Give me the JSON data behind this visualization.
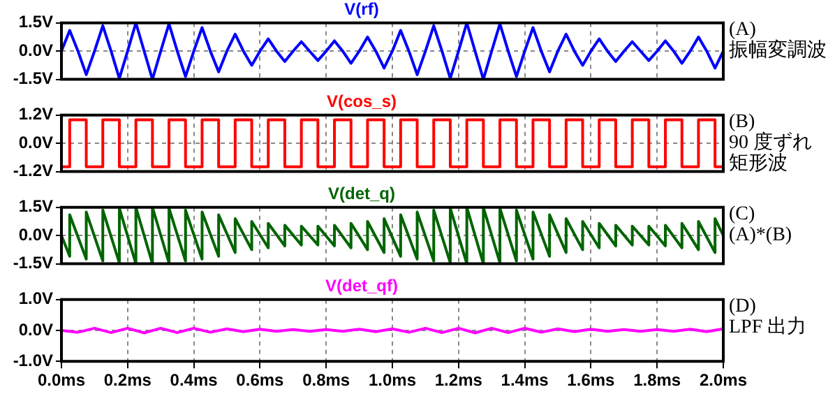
{
  "chart_data": [
    {
      "type": "line",
      "title": "V(rf)",
      "annotations": [
        "(A)",
        "振幅変調波"
      ],
      "tick_labels": "y",
      "grid": true,
      "xlim": [
        0,
        2
      ],
      "xticks": [
        0,
        0.2,
        0.4,
        0.6,
        0.8,
        1,
        1.2,
        1.4,
        1.6,
        1.8,
        2
      ],
      "ylim": [
        -1.5,
        1.5
      ],
      "yticks": [
        {
          "value": -1.5,
          "label": "-1.5V"
        },
        {
          "value": 0,
          "label": "0.0V"
        },
        {
          "value": 1.5,
          "label": "1.5V"
        }
      ],
      "x": [
        0,
        0.025,
        0.05,
        0.075,
        0.1,
        0.125,
        0.15,
        0.175,
        0.2,
        0.225,
        0.25,
        0.275,
        0.3,
        0.325,
        0.35,
        0.375,
        0.4,
        0.425,
        0.45,
        0.475,
        0.5,
        0.525,
        0.55,
        0.575,
        0.6,
        0.625,
        0.65,
        0.675,
        0.7,
        0.725,
        0.75,
        0.775,
        0.8,
        0.825,
        0.85,
        0.875,
        0.9,
        0.925,
        0.95,
        0.975,
        1,
        1.025,
        1.05,
        1.075,
        1.1,
        1.125,
        1.15,
        1.175,
        1.2,
        1.225,
        1.25,
        1.275,
        1.3,
        1.325,
        1.35,
        1.375,
        1.4,
        1.425,
        1.45,
        1.475,
        1.5,
        1.525,
        1.55,
        1.575,
        1.6,
        1.625,
        1.65,
        1.675,
        1.7,
        1.725,
        1.75,
        1.775,
        1.8,
        1.825,
        1.85,
        1.875,
        1.9,
        1.925,
        1.95,
        1.975,
        2
      ],
      "series": [
        {
          "color": "#0000ff",
          "values": [
            0,
            1.1,
            0,
            -1.25,
            0,
            1.35,
            0,
            -1.45,
            0,
            1.5,
            0,
            -1.5,
            0,
            1.45,
            0,
            -1.35,
            0,
            1.25,
            0,
            -1.1,
            0,
            0.9,
            0,
            -0.75,
            0,
            0.65,
            0,
            -0.55,
            0,
            0.5,
            0,
            -0.5,
            0,
            0.55,
            0,
            -0.65,
            0,
            0.75,
            0,
            -0.9,
            0,
            1.1,
            0,
            -1.25,
            0,
            1.35,
            0,
            -1.45,
            0,
            1.5,
            0,
            -1.5,
            0,
            1.45,
            0,
            -1.35,
            0,
            1.25,
            0,
            -1.1,
            0,
            0.9,
            0,
            -0.75,
            0,
            0.65,
            0,
            -0.55,
            0,
            0.5,
            0,
            -0.5,
            0,
            0.55,
            0,
            -0.65,
            0,
            0.75,
            0,
            -0.9,
            0
          ]
        }
      ]
    },
    {
      "type": "line",
      "title": "V(cos_s)",
      "annotations": [
        "(B)",
        "90 度ずれ",
        "矩形波"
      ],
      "tick_labels": "y",
      "grid": true,
      "xlim": [
        0,
        2
      ],
      "xticks": [
        0,
        0.2,
        0.4,
        0.6,
        0.8,
        1,
        1.2,
        1.4,
        1.6,
        1.8,
        2
      ],
      "ylim": [
        -1.2,
        1.2
      ],
      "yticks": [
        {
          "value": -1.2,
          "label": "-1.2V"
        },
        {
          "value": 0,
          "label": "0.0V"
        },
        {
          "value": 1.2,
          "label": "1.2V"
        }
      ],
      "x": [
        0,
        0.025,
        0.025,
        0.075,
        0.075,
        0.125,
        0.125,
        0.175,
        0.175,
        0.225,
        0.225,
        0.275,
        0.275,
        0.325,
        0.325,
        0.375,
        0.375,
        0.425,
        0.425,
        0.475,
        0.475,
        0.525,
        0.525,
        0.575,
        0.575,
        0.625,
        0.625,
        0.675,
        0.675,
        0.725,
        0.725,
        0.775,
        0.775,
        0.825,
        0.825,
        0.875,
        0.875,
        0.925,
        0.925,
        0.975,
        0.975,
        1.025,
        1.025,
        1.075,
        1.075,
        1.125,
        1.125,
        1.175,
        1.175,
        1.225,
        1.225,
        1.275,
        1.275,
        1.325,
        1.325,
        1.375,
        1.375,
        1.425,
        1.425,
        1.475,
        1.475,
        1.525,
        1.525,
        1.575,
        1.575,
        1.625,
        1.625,
        1.675,
        1.675,
        1.725,
        1.725,
        1.775,
        1.775,
        1.825,
        1.825,
        1.875,
        1.875,
        1.925,
        1.925,
        1.975,
        1.975,
        2
      ],
      "series": [
        {
          "color": "#ff0000",
          "values": [
            -1,
            -1,
            1,
            1,
            -1,
            -1,
            1,
            1,
            -1,
            -1,
            1,
            1,
            -1,
            -1,
            1,
            1,
            -1,
            -1,
            1,
            1,
            -1,
            -1,
            1,
            1,
            -1,
            -1,
            1,
            1,
            -1,
            -1,
            1,
            1,
            -1,
            -1,
            1,
            1,
            -1,
            -1,
            1,
            1,
            -1,
            -1,
            1,
            1,
            -1,
            -1,
            1,
            1,
            -1,
            -1,
            1,
            1,
            -1,
            -1,
            1,
            1,
            -1,
            -1,
            1,
            1,
            -1,
            -1,
            1,
            1,
            -1,
            -1,
            1,
            1,
            -1,
            -1,
            1,
            1,
            -1,
            -1,
            1,
            1,
            -1,
            -1,
            1,
            1,
            -1,
            -1
          ]
        }
      ]
    },
    {
      "type": "line",
      "title": "V(det_q)",
      "annotations": [
        "(C)",
        "(A)*(B)"
      ],
      "tick_labels": "y",
      "grid": true,
      "xlim": [
        0,
        2
      ],
      "xticks": [
        0,
        0.2,
        0.4,
        0.6,
        0.8,
        1,
        1.2,
        1.4,
        1.6,
        1.8,
        2
      ],
      "ylim": [
        -1.5,
        1.5
      ],
      "yticks": [
        {
          "value": -1.5,
          "label": "-1.5V"
        },
        {
          "value": 0,
          "label": "0.0V"
        },
        {
          "value": 1.5,
          "label": "1.5V"
        }
      ],
      "x": [
        0,
        0.025,
        0.025,
        0.075,
        0.075,
        0.125,
        0.125,
        0.175,
        0.175,
        0.225,
        0.225,
        0.275,
        0.275,
        0.325,
        0.325,
        0.375,
        0.375,
        0.425,
        0.425,
        0.475,
        0.475,
        0.525,
        0.525,
        0.575,
        0.575,
        0.625,
        0.625,
        0.675,
        0.675,
        0.725,
        0.725,
        0.775,
        0.775,
        0.825,
        0.825,
        0.875,
        0.875,
        0.925,
        0.925,
        0.975,
        0.975,
        1.025,
        1.025,
        1.075,
        1.075,
        1.125,
        1.125,
        1.175,
        1.175,
        1.225,
        1.225,
        1.275,
        1.275,
        1.325,
        1.325,
        1.375,
        1.375,
        1.425,
        1.425,
        1.475,
        1.475,
        1.525,
        1.525,
        1.575,
        1.575,
        1.625,
        1.625,
        1.675,
        1.675,
        1.725,
        1.725,
        1.775,
        1.775,
        1.825,
        1.825,
        1.875,
        1.875,
        1.925,
        1.925,
        1.975,
        1.975,
        2
      ],
      "series": [
        {
          "color": "#006400",
          "values": [
            0,
            -1.1,
            1.1,
            -1.25,
            1.25,
            -1.35,
            1.35,
            -1.45,
            1.45,
            -1.5,
            1.5,
            -1.5,
            1.5,
            -1.45,
            1.45,
            -1.35,
            1.35,
            -1.25,
            1.25,
            -1.1,
            1.1,
            -0.9,
            0.9,
            -0.75,
            0.75,
            -0.65,
            0.65,
            -0.55,
            0.55,
            -0.5,
            0.5,
            -0.5,
            0.5,
            -0.55,
            0.55,
            -0.65,
            0.65,
            -0.75,
            0.75,
            -0.9,
            0.9,
            -1.1,
            1.1,
            -1.25,
            1.25,
            -1.35,
            1.35,
            -1.45,
            1.45,
            -1.5,
            1.5,
            -1.5,
            1.5,
            -1.45,
            1.45,
            -1.35,
            1.35,
            -1.25,
            1.25,
            -1.1,
            1.1,
            -0.9,
            0.9,
            -0.75,
            0.75,
            -0.65,
            0.65,
            -0.55,
            0.55,
            -0.5,
            0.5,
            -0.5,
            0.5,
            -0.55,
            0.55,
            -0.65,
            0.65,
            -0.75,
            0.75,
            -0.9,
            0.9,
            0
          ]
        }
      ]
    },
    {
      "type": "line",
      "title": "V(det_qf)",
      "annotations": [
        "(D)",
        "LPF 出力"
      ],
      "grid": true,
      "xlim": [
        0,
        2
      ],
      "xticks": [
        {
          "value": 0,
          "label": "0.0ms"
        },
        {
          "value": 0.2,
          "label": "0.2ms"
        },
        {
          "value": 0.4,
          "label": "0.4ms"
        },
        {
          "value": 0.6,
          "label": "0.6ms"
        },
        {
          "value": 0.8,
          "label": "0.8ms"
        },
        {
          "value": 1,
          "label": "1.0ms"
        },
        {
          "value": 1.2,
          "label": "1.2ms"
        },
        {
          "value": 1.4,
          "label": "1.4ms"
        },
        {
          "value": 1.6,
          "label": "1.6ms"
        },
        {
          "value": 1.8,
          "label": "1.8ms"
        },
        {
          "value": 2,
          "label": "2.0ms"
        }
      ],
      "ylim": [
        -1,
        1
      ],
      "yticks": [
        {
          "value": -1,
          "label": "-1.0V"
        },
        {
          "value": 0,
          "label": "0.0V"
        },
        {
          "value": 1,
          "label": "1.0V"
        }
      ],
      "x": [
        0,
        0.05,
        0.1,
        0.15,
        0.2,
        0.25,
        0.3,
        0.35,
        0.4,
        0.45,
        0.5,
        0.55,
        0.6,
        0.65,
        0.7,
        0.75,
        0.8,
        0.85,
        0.9,
        0.95,
        1,
        1.05,
        1.1,
        1.15,
        1.2,
        1.25,
        1.3,
        1.35,
        1.4,
        1.45,
        1.5,
        1.55,
        1.6,
        1.65,
        1.7,
        1.75,
        1.8,
        1.85,
        1.9,
        1.95,
        2
      ],
      "series": [
        {
          "color": "#ff00ff",
          "values": [
            0,
            -0.06,
            0.07,
            -0.07,
            0.07,
            -0.08,
            0.07,
            -0.07,
            0.07,
            -0.06,
            0.05,
            -0.04,
            0.04,
            -0.03,
            0.03,
            -0.03,
            0.03,
            -0.03,
            0.04,
            -0.04,
            0.05,
            -0.06,
            0.07,
            -0.07,
            0.07,
            -0.08,
            0.07,
            -0.07,
            0.07,
            -0.06,
            0.05,
            -0.04,
            0.04,
            -0.03,
            0.03,
            -0.03,
            0.03,
            -0.03,
            0.04,
            -0.04,
            0.05
          ]
        }
      ]
    }
  ]
}
